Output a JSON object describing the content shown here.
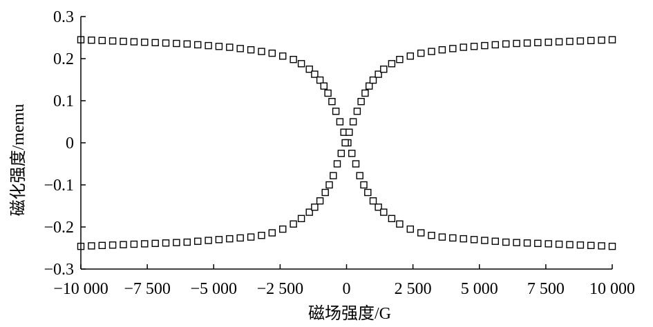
{
  "chart_data": {
    "type": "scatter",
    "xlabel": "磁场强度/G",
    "ylabel": "磁化强度/memu",
    "xlim": [
      -10000,
      10000
    ],
    "ylim": [
      -0.3,
      0.3
    ],
    "xticks": [
      -10000,
      -7500,
      -5000,
      -2500,
      0,
      2500,
      5000,
      7500,
      10000
    ],
    "xtick_labels": [
      "−10 000",
      "−7 500",
      "−5 000",
      "−2 500",
      "0",
      "2 500",
      "5 000",
      "7 500",
      "10 000"
    ],
    "yticks": [
      0.3,
      0.2,
      0.1,
      0,
      -0.1,
      -0.2,
      -0.3
    ],
    "ytick_labels": [
      "0.3",
      "0.2",
      "0.1",
      "0",
      "−0.1",
      "−0.2",
      "−0.3"
    ],
    "marker": "open-square",
    "grid": false,
    "series": [
      {
        "x": [
          -10000,
          -9600,
          -9200,
          -8800,
          -8400,
          -8000,
          -7600,
          -7200,
          -6800,
          -6400,
          -6000,
          -5600,
          -5200,
          -4800,
          -4400,
          -4000,
          -3600,
          -3200,
          -2800,
          -2400,
          -2000,
          -1700,
          -1400,
          -1200,
          -1000,
          -850,
          -700,
          -550,
          -400,
          -250,
          -100,
          50,
          200,
          350,
          500,
          650,
          800,
          1000,
          1200,
          1400,
          1700,
          2000,
          2400,
          2800,
          3200,
          3600,
          4000,
          4400,
          4800,
          5200,
          5600,
          6000,
          6400,
          6800,
          7200,
          7600,
          8000,
          8400,
          8800,
          9200,
          9600,
          10000
        ],
        "y": [
          0.245,
          0.244,
          0.243,
          0.242,
          0.241,
          0.24,
          0.239,
          0.238,
          0.237,
          0.236,
          0.235,
          0.233,
          0.231,
          0.229,
          0.227,
          0.224,
          0.221,
          0.217,
          0.213,
          0.206,
          0.198,
          0.188,
          0.175,
          0.163,
          0.149,
          0.135,
          0.118,
          0.098,
          0.075,
          0.05,
          0.025,
          0.0,
          -0.025,
          -0.05,
          -0.078,
          -0.1,
          -0.118,
          -0.138,
          -0.153,
          -0.165,
          -0.18,
          -0.193,
          -0.205,
          -0.214,
          -0.22,
          -0.224,
          -0.226,
          -0.228,
          -0.23,
          -0.232,
          -0.234,
          -0.236,
          -0.237,
          -0.238,
          -0.239,
          -0.24,
          -0.241,
          -0.242,
          -0.243,
          -0.244,
          -0.245,
          -0.246
        ]
      },
      {
        "x": [
          -10000,
          -9600,
          -9200,
          -8800,
          -8400,
          -8000,
          -7600,
          -7200,
          -6800,
          -6400,
          -6000,
          -5600,
          -5200,
          -4800,
          -4400,
          -4000,
          -3600,
          -3200,
          -2800,
          -2400,
          -2000,
          -1700,
          -1400,
          -1200,
          -1000,
          -800,
          -650,
          -500,
          -350,
          -200,
          -50,
          100,
          250,
          400,
          550,
          700,
          850,
          1000,
          1200,
          1400,
          1700,
          2000,
          2400,
          2800,
          3200,
          3600,
          4000,
          4400,
          4800,
          5200,
          5600,
          6000,
          6400,
          6800,
          7200,
          7600,
          8000,
          8400,
          8800,
          9200,
          9600,
          10000
        ],
        "y": [
          -0.246,
          -0.245,
          -0.244,
          -0.243,
          -0.242,
          -0.241,
          -0.24,
          -0.239,
          -0.238,
          -0.237,
          -0.236,
          -0.234,
          -0.232,
          -0.23,
          -0.228,
          -0.226,
          -0.224,
          -0.22,
          -0.214,
          -0.205,
          -0.193,
          -0.18,
          -0.165,
          -0.153,
          -0.138,
          -0.118,
          -0.1,
          -0.078,
          -0.05,
          -0.025,
          0.0,
          0.025,
          0.05,
          0.075,
          0.098,
          0.118,
          0.135,
          0.149,
          0.163,
          0.175,
          0.188,
          0.198,
          0.206,
          0.213,
          0.217,
          0.221,
          0.224,
          0.227,
          0.229,
          0.231,
          0.233,
          0.235,
          0.236,
          0.237,
          0.238,
          0.239,
          0.24,
          0.241,
          0.242,
          0.243,
          0.244,
          0.245
        ]
      }
    ]
  }
}
